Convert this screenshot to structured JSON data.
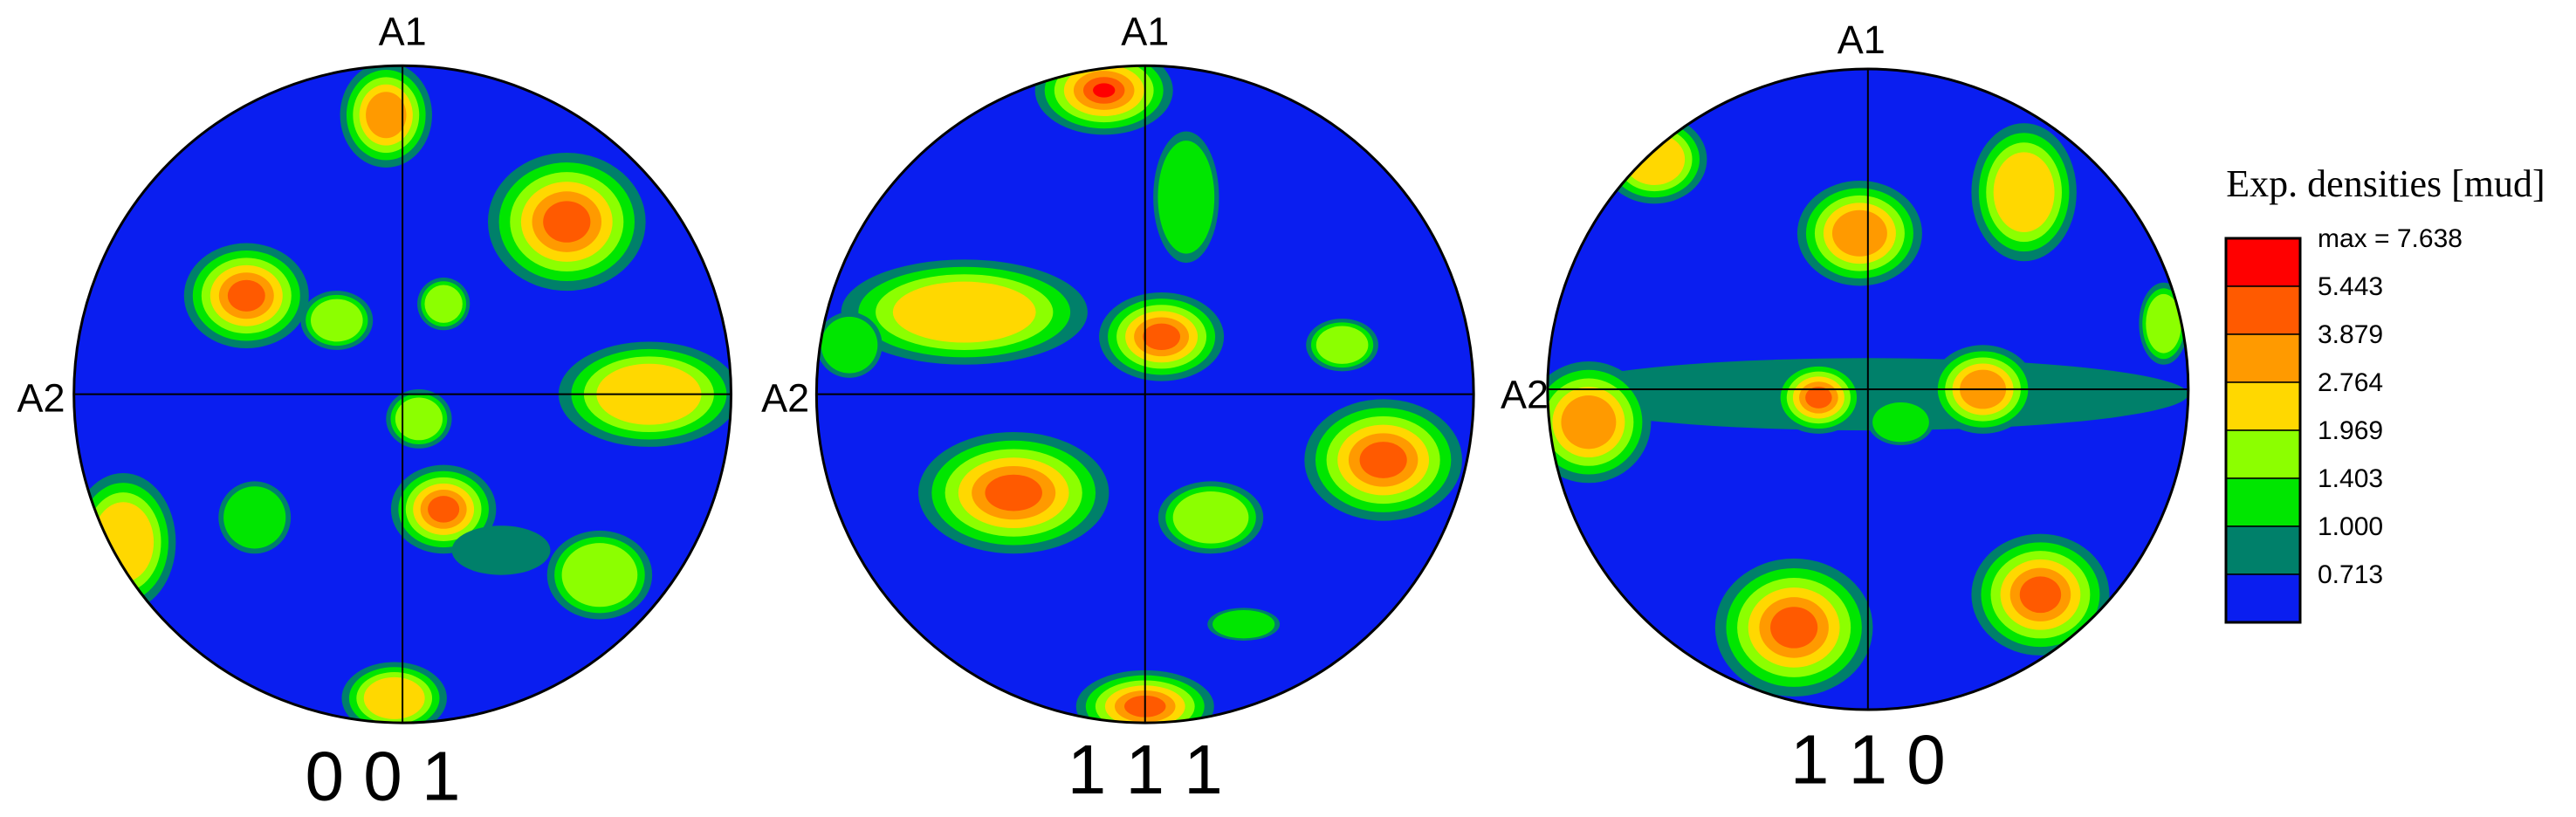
{
  "figures": [
    {
      "axis_top": "A1",
      "axis_left": "A2",
      "label": "0 0 1"
    },
    {
      "axis_top": "A1",
      "axis_left": "A2",
      "label": "1 1 1"
    },
    {
      "axis_top": "A1",
      "axis_left": "A2",
      "label": "1 1 0"
    }
  ],
  "legend": {
    "title": "Exp. densities [mud]",
    "levels": [
      "max = 7.638",
      "5.443",
      "3.879",
      "2.764",
      "1.969",
      "1.403",
      "1.000",
      "0.713"
    ],
    "colors": [
      "#ff0000",
      "#ff5a00",
      "#ff9a00",
      "#ffd800",
      "#8cff00",
      "#00e600",
      "#00806a",
      "#0a1ef0"
    ]
  }
}
